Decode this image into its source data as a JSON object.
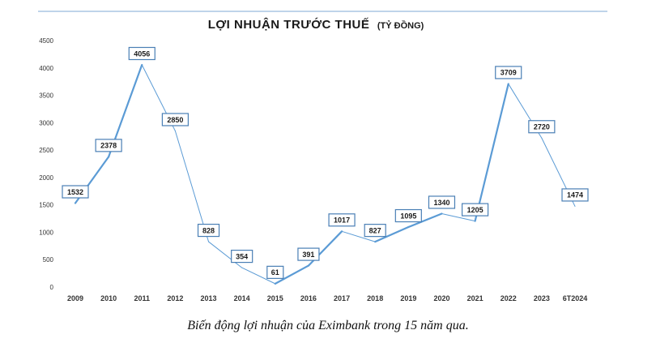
{
  "caption": "Biến động lợi nhuận của Eximbank trong 15 năm qua.",
  "chart_data": {
    "type": "line",
    "title": "LỢI NHUẬN TRƯỚC THUẾ",
    "title_unit": "(TỶ ĐỒNG)",
    "categories": [
      "2009",
      "2010",
      "2011",
      "2012",
      "2013",
      "2014",
      "2015",
      "2016",
      "2017",
      "2018",
      "2019",
      "2020",
      "2021",
      "2022",
      "2023",
      "6T2024"
    ],
    "values": [
      1532,
      2378,
      4056,
      2850,
      828,
      354,
      61,
      391,
      1017,
      827,
      1095,
      1340,
      1205,
      3709,
      2720,
      1474
    ],
    "data_labels": [
      "1532",
      "2378",
      "4056",
      "2850",
      "828",
      "354",
      "61",
      "391",
      "1017",
      "827",
      "1095",
      "1340",
      "1205",
      "3709",
      "2720",
      "1474"
    ],
    "ylim": [
      0,
      4500
    ],
    "yticks": [
      0,
      500,
      1000,
      1500,
      2000,
      2500,
      3000,
      3500,
      4000,
      4500
    ],
    "xlabel": "",
    "ylabel": "",
    "grid": false,
    "legend": "none",
    "line_color": "#5b9bd5",
    "label_border_color": "#4a7fb5",
    "rule_color": "#7fa8d6"
  }
}
